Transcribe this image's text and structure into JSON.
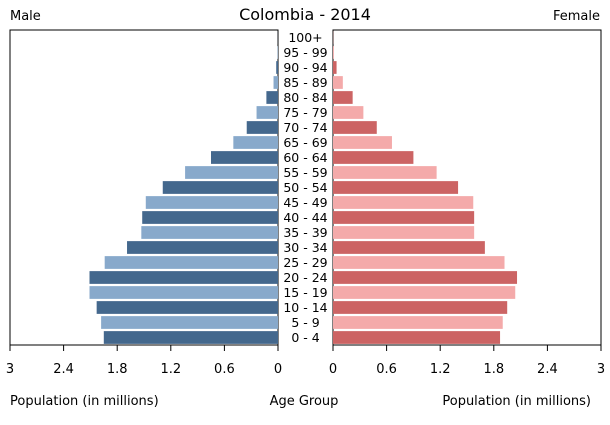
{
  "chart_data": {
    "type": "bar",
    "title": "Colombia - 2014",
    "left_label": "Male",
    "right_label": "Female",
    "xlabel_left": "Population (in millions)",
    "xlabel_center": "Age Group",
    "xlabel_right": "Population (in millions)",
    "xlim": [
      0,
      3
    ],
    "xticks": [
      "3",
      "2.4",
      "1.8",
      "1.2",
      "0.6",
      "0"
    ],
    "xticks_right": [
      "0",
      "0.6",
      "1.2",
      "1.8",
      "2.4",
      "3"
    ],
    "tick_values": [
      3,
      2.4,
      1.8,
      1.2,
      0.6,
      0
    ],
    "tick_values_right": [
      0,
      0.6,
      1.2,
      1.8,
      2.4,
      3
    ],
    "categories": [
      "100+",
      "95 - 99",
      "90 - 94",
      "85 - 89",
      "80 - 84",
      "75 - 79",
      "70 - 74",
      "65 - 69",
      "60 - 64",
      "55 - 59",
      "50 - 54",
      "45 - 49",
      "40 - 44",
      "35 - 39",
      "30 - 34",
      "25 - 29",
      "20 - 24",
      "15 - 19",
      "10 - 14",
      "5 - 9",
      "0 - 4"
    ],
    "series": [
      {
        "name": "Male",
        "values": [
          0.001,
          0.005,
          0.02,
          0.05,
          0.13,
          0.24,
          0.35,
          0.5,
          0.75,
          1.04,
          1.29,
          1.48,
          1.52,
          1.53,
          1.69,
          1.94,
          2.11,
          2.11,
          2.03,
          1.98,
          1.95
        ]
      },
      {
        "name": "Female",
        "values": [
          0.002,
          0.01,
          0.04,
          0.11,
          0.22,
          0.34,
          0.49,
          0.66,
          0.9,
          1.16,
          1.4,
          1.57,
          1.58,
          1.58,
          1.7,
          1.92,
          2.06,
          2.04,
          1.95,
          1.9,
          1.87
        ]
      }
    ],
    "colors": {
      "male_dark": "#44688d",
      "male_light": "#88a9cb",
      "female_dark": "#cc6464",
      "female_light": "#f4aaaa",
      "axis": "#000000"
    },
    "grid": false
  }
}
